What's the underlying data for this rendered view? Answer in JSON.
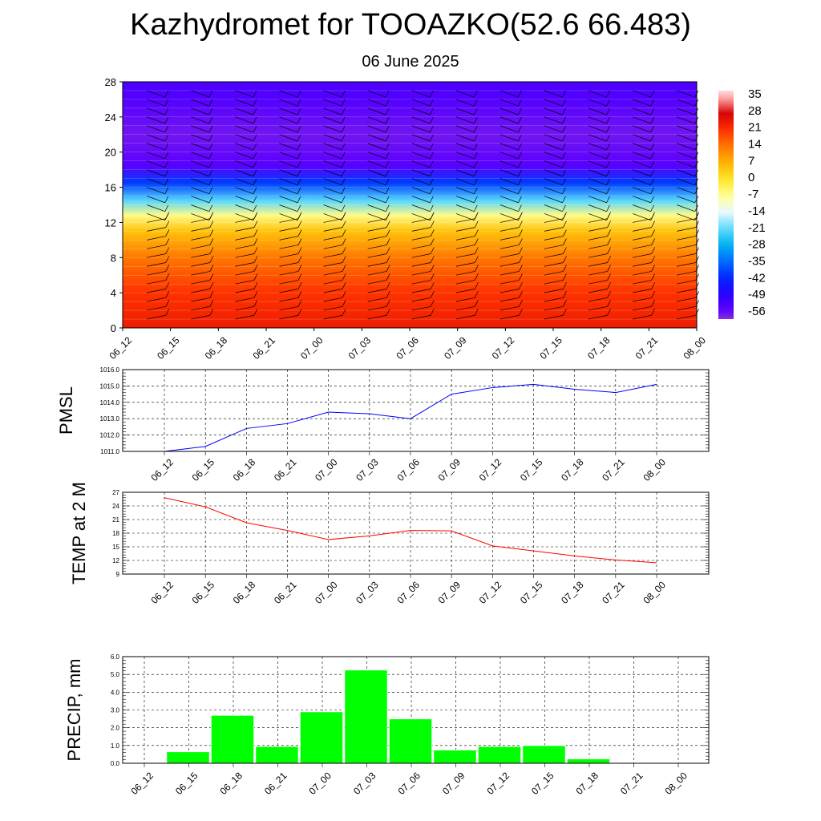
{
  "header": {
    "title": "Kazhydromet for TOOAZKO(52.6 66.483)",
    "subtitle": "06 June 2025"
  },
  "time_labels": [
    "06_12",
    "06_15",
    "06_18",
    "06_21",
    "07_00",
    "07_03",
    "07_06",
    "07_09",
    "07_12",
    "07_15",
    "07_18",
    "07_21",
    "08_00"
  ],
  "colors": {
    "pmsl_line": "#0000ff",
    "temp_line": "#ff0000",
    "precip_bar": "#00ff00",
    "grid": "#000000"
  },
  "chart_data": [
    {
      "type": "heatmap",
      "title": "",
      "x": [
        "06_12",
        "06_15",
        "06_18",
        "06_21",
        "07_00",
        "07_03",
        "07_06",
        "07_09",
        "07_12",
        "07_15",
        "07_18",
        "07_21",
        "08_00"
      ],
      "ylim": [
        0,
        28
      ],
      "yticks": [
        0,
        4,
        8,
        12,
        16,
        20,
        24,
        28
      ],
      "colorbar": {
        "labels": [
          "35",
          "28",
          "21",
          "14",
          "7",
          "0",
          "-7",
          "-14",
          "-21",
          "-28",
          "-35",
          "-42",
          "-49",
          "-56"
        ],
        "min": -60,
        "max": 38
      },
      "temperature_profile": [
        {
          "y": 0,
          "t": 24
        },
        {
          "y": 4,
          "t": 21
        },
        {
          "y": 8,
          "t": 14
        },
        {
          "y": 11,
          "t": 5
        },
        {
          "y": 12.8,
          "t": -6
        },
        {
          "y": 14.5,
          "t": -22
        },
        {
          "y": 16.5,
          "t": -40
        },
        {
          "y": 18.5,
          "t": -56
        },
        {
          "y": 22,
          "t": -58
        },
        {
          "y": 26,
          "t": -55
        },
        {
          "y": 28,
          "t": -54
        }
      ],
      "wind_barb_levels": [
        1,
        2,
        3,
        4,
        5,
        6,
        7,
        8,
        9,
        10,
        11,
        12,
        13,
        14,
        15,
        16,
        17,
        18,
        19,
        20,
        21,
        22,
        23,
        24,
        25,
        26,
        27
      ]
    },
    {
      "type": "line",
      "ylabel": "PMSL",
      "x": [
        "06_12",
        "06_15",
        "06_18",
        "06_21",
        "07_00",
        "07_03",
        "07_06",
        "07_09",
        "07_12",
        "07_15",
        "07_18",
        "07_21",
        "08_00"
      ],
      "series": [
        {
          "values": [
            1011.0,
            1011.3,
            1012.4,
            1012.7,
            1013.4,
            1013.3,
            1013.0,
            1014.5,
            1014.9,
            1015.1,
            1014.8,
            1014.6,
            1015.1
          ]
        }
      ],
      "ylim": [
        1011.0,
        1016.0
      ],
      "yticks": [
        "1011.0",
        "1012.0",
        "1013.0",
        "1014.0",
        "1015.0",
        "1016.0"
      ]
    },
    {
      "type": "line",
      "ylabel": "TEMP at 2 M",
      "x": [
        "06_12",
        "06_15",
        "06_18",
        "06_21",
        "07_00",
        "07_03",
        "07_06",
        "07_09",
        "07_12",
        "07_15",
        "07_18",
        "07_21",
        "08_00"
      ],
      "series": [
        {
          "values": [
            25.8,
            23.8,
            20.3,
            18.6,
            16.6,
            17.4,
            18.6,
            18.5,
            15.2,
            14.1,
            13.0,
            12.1,
            11.5
          ]
        }
      ],
      "ylim": [
        9,
        27
      ],
      "yticks": [
        "9",
        "12",
        "15",
        "18",
        "21",
        "24",
        "27"
      ]
    },
    {
      "type": "bar",
      "ylabel": "PRECIP, mm",
      "x": [
        "06_12",
        "06_15",
        "06_18",
        "06_21",
        "07_00",
        "07_03",
        "07_06",
        "07_09",
        "07_12",
        "07_15",
        "07_18",
        "07_21",
        "08_00"
      ],
      "series": [
        {
          "values": [
            0.0,
            0.65,
            2.7,
            0.95,
            2.9,
            5.25,
            2.5,
            0.75,
            0.95,
            1.0,
            0.25,
            0.0,
            0.0
          ]
        }
      ],
      "ylim": [
        0.0,
        6.0
      ],
      "yticks": [
        "0.0",
        "1.0",
        "2.0",
        "3.0",
        "4.0",
        "5.0",
        "6.0"
      ]
    }
  ]
}
